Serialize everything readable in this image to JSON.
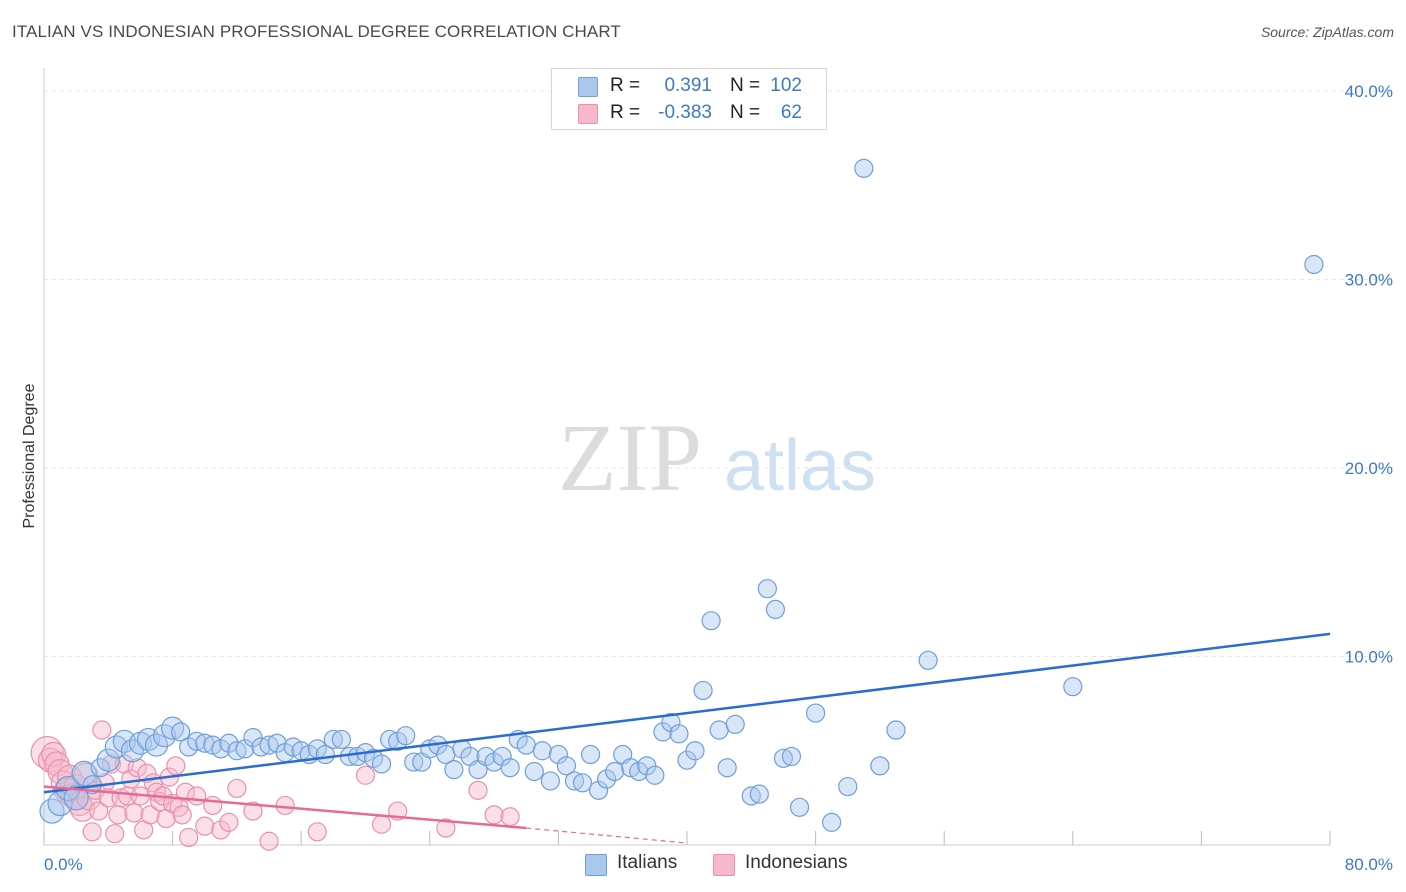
{
  "title": "ITALIAN VS INDONESIAN PROFESSIONAL DEGREE CORRELATION CHART",
  "source": "Source: ZipAtlas.com",
  "watermark": {
    "zip": "ZIP",
    "atlas": "atlas"
  },
  "colors": {
    "italians_fill": "#aac8ee",
    "italians_stroke": "#6f9fd8",
    "italians_line": "#2a6dd0",
    "indonesians_fill": "#f7b8cb",
    "indonesians_stroke": "#e891ad",
    "indonesians_line": "#e36b95",
    "grid": "#e6e6e6",
    "axis_text": "#3d78c9"
  },
  "legend": {
    "rows": [
      {
        "r_label": "R =",
        "r_value": "0.391",
        "n_label": "N =",
        "n_value": "102"
      },
      {
        "r_label": "R =",
        "r_value": "-0.383",
        "n_label": "N =",
        "n_value": "62"
      }
    ]
  },
  "bottom_legend": {
    "italians": "Italians",
    "indonesians": "Indonesians"
  },
  "chart_data": {
    "type": "scatter",
    "title": "ITALIAN VS INDONESIAN PROFESSIONAL DEGREE CORRELATION CHART",
    "xlabel": "",
    "ylabel": "Professional Degree",
    "xlim": [
      0,
      80
    ],
    "ylim": [
      0,
      40
    ],
    "x_tick_labels": [
      "0.0%",
      "80.0%"
    ],
    "y_tick_labels": [
      "10.0%",
      "20.0%",
      "30.0%",
      "40.0%"
    ],
    "y_ticks": [
      10,
      20,
      30,
      40
    ],
    "series": [
      {
        "name": "Italians",
        "R": 0.391,
        "N": 102,
        "trend": {
          "x": [
            0,
            80
          ],
          "y": [
            2.8,
            11.2
          ]
        },
        "points": [
          [
            0.5,
            1.8
          ],
          [
            1.0,
            2.2
          ],
          [
            1.5,
            3.0
          ],
          [
            2.0,
            2.5
          ],
          [
            2.5,
            3.8
          ],
          [
            3.0,
            3.2
          ],
          [
            3.5,
            4.1
          ],
          [
            4.0,
            4.5
          ],
          [
            4.5,
            5.2
          ],
          [
            5.0,
            5.5
          ],
          [
            5.5,
            5.0
          ],
          [
            6.0,
            5.4
          ],
          [
            6.5,
            5.6
          ],
          [
            7.0,
            5.3
          ],
          [
            7.5,
            5.8
          ],
          [
            8.0,
            6.2
          ],
          [
            8.5,
            6.0
          ],
          [
            9.0,
            5.2
          ],
          [
            9.5,
            5.5
          ],
          [
            10.0,
            5.4
          ],
          [
            10.5,
            5.3
          ],
          [
            11.0,
            5.1
          ],
          [
            11.5,
            5.4
          ],
          [
            12.0,
            5.0
          ],
          [
            12.5,
            5.1
          ],
          [
            13.0,
            5.7
          ],
          [
            13.5,
            5.2
          ],
          [
            14.0,
            5.3
          ],
          [
            14.5,
            5.4
          ],
          [
            15.0,
            4.9
          ],
          [
            15.5,
            5.2
          ],
          [
            16.0,
            5.0
          ],
          [
            16.5,
            4.8
          ],
          [
            17.0,
            5.1
          ],
          [
            17.5,
            4.8
          ],
          [
            18.0,
            5.6
          ],
          [
            18.5,
            5.6
          ],
          [
            19.0,
            4.7
          ],
          [
            19.5,
            4.7
          ],
          [
            20.0,
            4.9
          ],
          [
            20.5,
            4.6
          ],
          [
            21.0,
            4.3
          ],
          [
            21.5,
            5.6
          ],
          [
            22.0,
            5.5
          ],
          [
            22.5,
            5.8
          ],
          [
            23.0,
            4.4
          ],
          [
            23.5,
            4.4
          ],
          [
            24.0,
            5.1
          ],
          [
            24.5,
            5.3
          ],
          [
            25.0,
            4.8
          ],
          [
            25.5,
            4.0
          ],
          [
            26.0,
            5.1
          ],
          [
            26.5,
            4.7
          ],
          [
            27.0,
            4.0
          ],
          [
            27.5,
            4.7
          ],
          [
            28.0,
            4.4
          ],
          [
            28.5,
            4.7
          ],
          [
            29.0,
            4.1
          ],
          [
            29.5,
            5.6
          ],
          [
            30.0,
            5.3
          ],
          [
            30.5,
            3.9
          ],
          [
            31.0,
            5.0
          ],
          [
            31.5,
            3.4
          ],
          [
            32.0,
            4.8
          ],
          [
            32.5,
            4.2
          ],
          [
            33.0,
            3.4
          ],
          [
            33.5,
            3.3
          ],
          [
            34.0,
            4.8
          ],
          [
            34.5,
            2.9
          ],
          [
            35.0,
            3.5
          ],
          [
            35.5,
            3.9
          ],
          [
            36.0,
            4.8
          ],
          [
            36.5,
            4.1
          ],
          [
            37.0,
            3.9
          ],
          [
            37.5,
            4.2
          ],
          [
            38.0,
            3.7
          ],
          [
            38.5,
            6.0
          ],
          [
            39.0,
            6.5
          ],
          [
            39.5,
            5.9
          ],
          [
            40.0,
            4.5
          ],
          [
            40.5,
            5.0
          ],
          [
            41.0,
            8.2
          ],
          [
            41.5,
            11.9
          ],
          [
            42.0,
            6.1
          ],
          [
            42.5,
            4.1
          ],
          [
            43.0,
            6.4
          ],
          [
            44.0,
            2.6
          ],
          [
            44.5,
            2.7
          ],
          [
            45.0,
            13.6
          ],
          [
            45.5,
            12.5
          ],
          [
            46.0,
            4.6
          ],
          [
            46.5,
            4.7
          ],
          [
            47.0,
            2.0
          ],
          [
            48.0,
            7.0
          ],
          [
            49.0,
            1.2
          ],
          [
            50.0,
            3.1
          ],
          [
            51.0,
            35.9
          ],
          [
            52.0,
            4.2
          ],
          [
            53.0,
            6.1
          ],
          [
            55.0,
            9.8
          ],
          [
            64.0,
            8.4
          ],
          [
            79.0,
            30.8
          ]
        ]
      },
      {
        "name": "Indonesians",
        "R": -0.383,
        "N": 62,
        "trend": {
          "x": [
            0,
            30
          ],
          "y": [
            3.1,
            0.9
          ]
        },
        "trend_extension": {
          "x": [
            30,
            40
          ],
          "y": [
            0.9,
            0.1
          ]
        },
        "points": [
          [
            0.2,
            4.9
          ],
          [
            0.4,
            4.5
          ],
          [
            0.6,
            4.8
          ],
          [
            0.8,
            4.3
          ],
          [
            1.0,
            3.9
          ],
          [
            1.2,
            3.3
          ],
          [
            1.4,
            2.9
          ],
          [
            1.6,
            3.6
          ],
          [
            1.8,
            2.6
          ],
          [
            2.0,
            3.1
          ],
          [
            2.2,
            2.2
          ],
          [
            2.4,
            1.9
          ],
          [
            2.6,
            3.7
          ],
          [
            2.8,
            2.5
          ],
          [
            3.0,
            0.7
          ],
          [
            3.2,
            2.9
          ],
          [
            3.4,
            1.8
          ],
          [
            3.6,
            6.1
          ],
          [
            3.8,
            3.3
          ],
          [
            4.0,
            2.5
          ],
          [
            4.2,
            4.3
          ],
          [
            4.4,
            0.6
          ],
          [
            4.6,
            1.6
          ],
          [
            4.8,
            2.5
          ],
          [
            5.0,
            4.3
          ],
          [
            5.2,
            2.6
          ],
          [
            5.4,
            3.5
          ],
          [
            5.6,
            1.7
          ],
          [
            5.8,
            4.1
          ],
          [
            6.0,
            2.6
          ],
          [
            6.2,
            0.8
          ],
          [
            6.4,
            3.8
          ],
          [
            6.6,
            1.6
          ],
          [
            6.8,
            3.3
          ],
          [
            7.0,
            2.8
          ],
          [
            7.2,
            2.3
          ],
          [
            7.4,
            2.6
          ],
          [
            7.6,
            1.4
          ],
          [
            7.8,
            3.6
          ],
          [
            8.0,
            2.2
          ],
          [
            8.2,
            4.2
          ],
          [
            8.4,
            2.0
          ],
          [
            8.6,
            1.6
          ],
          [
            8.8,
            2.8
          ],
          [
            9.0,
            0.4
          ],
          [
            9.5,
            2.6
          ],
          [
            10.0,
            1.0
          ],
          [
            10.5,
            2.1
          ],
          [
            11.0,
            0.8
          ],
          [
            11.5,
            1.2
          ],
          [
            12.0,
            3.0
          ],
          [
            13.0,
            1.8
          ],
          [
            14.0,
            0.2
          ],
          [
            15.0,
            2.1
          ],
          [
            17.0,
            0.7
          ],
          [
            20.0,
            3.7
          ],
          [
            21.0,
            1.1
          ],
          [
            22.0,
            1.8
          ],
          [
            25.0,
            0.9
          ],
          [
            27.0,
            2.9
          ],
          [
            28.0,
            1.6
          ],
          [
            29.0,
            1.5
          ]
        ]
      }
    ]
  }
}
